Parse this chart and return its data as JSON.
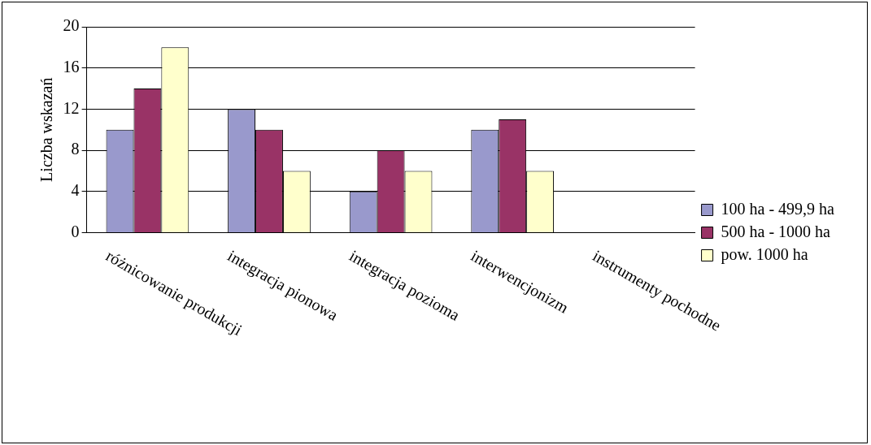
{
  "chart_data": {
    "type": "bar",
    "ylabel": "Liczba wskazań",
    "categories": [
      "różnicowanie produkcji",
      "integracja pionowa",
      "integracja pozioma",
      "interwencjonizm",
      "instrumenty pochodne"
    ],
    "series": [
      {
        "name": "100 ha - 499,9 ha",
        "color": "#9999cc",
        "values": [
          10,
          12,
          4,
          10,
          0
        ]
      },
      {
        "name": "500 ha - 1000 ha",
        "color": "#993366",
        "values": [
          14,
          10,
          8,
          11,
          0
        ]
      },
      {
        "name": "pow. 1000 ha",
        "color": "#ffffcc",
        "values": [
          18,
          6,
          6,
          6,
          0
        ]
      }
    ],
    "ylim": [
      0,
      20
    ],
    "yticks": [
      0,
      4,
      8,
      12,
      16,
      20
    ],
    "grid": "y",
    "legend": "right"
  }
}
